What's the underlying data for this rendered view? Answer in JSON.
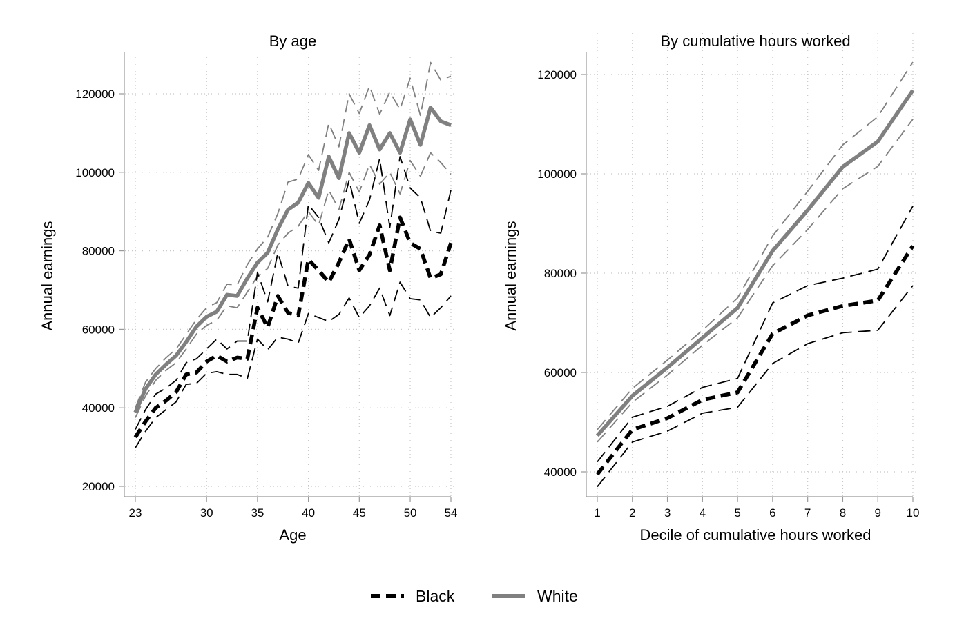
{
  "legend": {
    "position": "bottom",
    "items": [
      {
        "name": "Black",
        "color": "#000000",
        "style": "dashed-thick"
      },
      {
        "name": "White",
        "color": "#808080",
        "style": "solid-thick"
      }
    ]
  },
  "colors": {
    "black_series": "#000000",
    "white_series": "#808080",
    "grid": "#c8c8c8",
    "axis": "#999999"
  },
  "chart_data": [
    {
      "type": "line",
      "title": "By age",
      "xlabel": "Age",
      "ylabel": "Annual earnings",
      "xlim": [
        23,
        54
      ],
      "ylim": [
        20000,
        120000
      ],
      "xticks": [
        23,
        30,
        35,
        40,
        45,
        50,
        54
      ],
      "yticks": [
        20000,
        40000,
        60000,
        80000,
        100000,
        120000
      ],
      "grid": true,
      "x": [
        23,
        24,
        25,
        26,
        27,
        28,
        29,
        30,
        31,
        32,
        33,
        34,
        35,
        36,
        37,
        38,
        39,
        40,
        41,
        42,
        43,
        44,
        45,
        46,
        47,
        48,
        49,
        50,
        51,
        52,
        53,
        54
      ],
      "series": [
        {
          "name": "White",
          "role": "estimate",
          "values": [
            38800,
            44800,
            48500,
            51000,
            53300,
            56800,
            60700,
            63200,
            64500,
            68800,
            68500,
            73000,
            77000,
            79500,
            85500,
            90500,
            92300,
            97300,
            93500,
            104000,
            98500,
            110000,
            105000,
            112000,
            105800,
            110000,
            105000,
            113500,
            107000,
            116500,
            113000,
            112000
          ]
        },
        {
          "name": "White",
          "role": "ci-upper",
          "values": [
            40000,
            46500,
            50000,
            52700,
            55000,
            58700,
            62500,
            65500,
            66800,
            71500,
            71300,
            76500,
            80500,
            83500,
            89500,
            97500,
            98300,
            104500,
            100500,
            112500,
            106500,
            120000,
            115000,
            122000,
            114800,
            120500,
            116000,
            124000,
            114500,
            128000,
            123500,
            124500
          ]
        },
        {
          "name": "White",
          "role": "ci-lower",
          "values": [
            37500,
            43000,
            47000,
            49500,
            51500,
            55000,
            58800,
            61000,
            62300,
            66000,
            65500,
            69500,
            73500,
            75500,
            81500,
            84500,
            86300,
            90000,
            86500,
            95500,
            90500,
            100000,
            95000,
            102000,
            97000,
            100000,
            94500,
            103000,
            99000,
            105000,
            102500,
            99500
          ]
        },
        {
          "name": "Black",
          "role": "estimate",
          "values": [
            32500,
            36500,
            40000,
            41800,
            44000,
            48500,
            49000,
            51800,
            53300,
            51800,
            52800,
            52500,
            65500,
            60500,
            68500,
            64200,
            63500,
            77800,
            75000,
            72000,
            77000,
            83000,
            75000,
            79000,
            86500,
            75000,
            88500,
            82000,
            80500,
            73000,
            74000,
            82000
          ]
        },
        {
          "name": "Black",
          "role": "ci-upper",
          "values": [
            34500,
            39500,
            43500,
            45000,
            47000,
            51500,
            52500,
            55000,
            57500,
            55000,
            57000,
            57000,
            74500,
            67000,
            79500,
            71000,
            70500,
            91800,
            88500,
            82000,
            88000,
            98000,
            87000,
            93000,
            103500,
            86000,
            104000,
            96000,
            93500,
            85000,
            84500,
            95500
          ]
        },
        {
          "name": "Black",
          "role": "ci-lower",
          "values": [
            29800,
            34000,
            37500,
            39500,
            41500,
            46000,
            46200,
            48800,
            49200,
            48500,
            48500,
            47500,
            57500,
            54800,
            58000,
            57500,
            56500,
            64000,
            63000,
            62000,
            63800,
            68000,
            63000,
            66000,
            70500,
            63500,
            72000,
            67800,
            67500,
            63000,
            65500,
            68500
          ]
        }
      ]
    },
    {
      "type": "line",
      "title": "By cumulative hours worked",
      "xlabel": "Decile of cumulative hours worked",
      "ylabel": "Annual earnings",
      "xlim": [
        1,
        10
      ],
      "ylim": [
        40000,
        120000
      ],
      "xticks": [
        1,
        2,
        3,
        4,
        5,
        6,
        7,
        8,
        9,
        10
      ],
      "yticks": [
        40000,
        60000,
        80000,
        100000,
        120000
      ],
      "grid": true,
      "x": [
        1,
        2,
        3,
        4,
        5,
        6,
        7,
        8,
        9,
        10
      ],
      "series": [
        {
          "name": "White",
          "role": "estimate",
          "values": [
            47300,
            55300,
            61000,
            67000,
            73000,
            84500,
            92700,
            101400,
            106500,
            116800
          ]
        },
        {
          "name": "White",
          "role": "ci-upper",
          "values": [
            48500,
            56800,
            62500,
            68500,
            75000,
            87500,
            96500,
            105800,
            111500,
            122500
          ]
        },
        {
          "name": "White",
          "role": "ci-lower",
          "values": [
            46000,
            54000,
            59500,
            65500,
            71000,
            81500,
            88800,
            97000,
            101500,
            111000
          ]
        },
        {
          "name": "Black",
          "role": "estimate",
          "values": [
            39500,
            48500,
            50800,
            54500,
            56000,
            67800,
            71500,
            73400,
            74500,
            85500
          ]
        },
        {
          "name": "Black",
          "role": "ci-upper",
          "values": [
            42000,
            51000,
            53200,
            57000,
            58800,
            74000,
            77500,
            79000,
            80800,
            93500
          ]
        },
        {
          "name": "Black",
          "role": "ci-lower",
          "values": [
            37000,
            46000,
            48200,
            51800,
            53000,
            61800,
            65800,
            68000,
            68500,
            77500
          ]
        }
      ]
    }
  ]
}
